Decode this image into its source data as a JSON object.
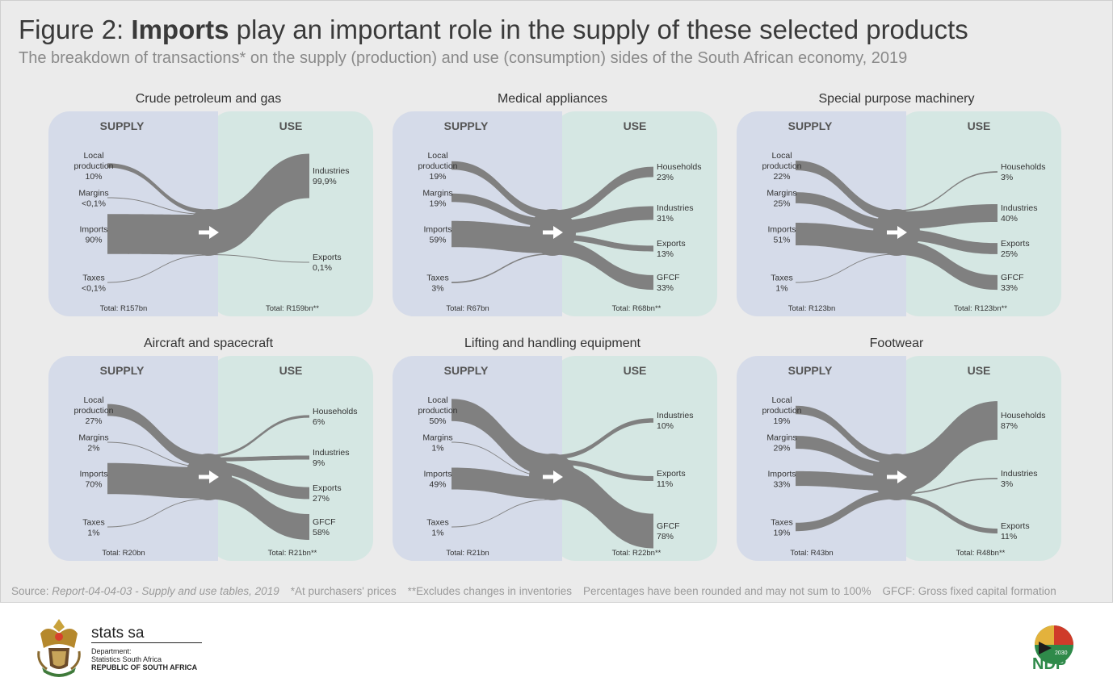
{
  "header": {
    "title_prefix": "Figure 2: ",
    "title_bold": "Imports",
    "title_rest": " play an important role in the supply of these selected products",
    "subtitle": "The breakdown of transactions* on the supply (production) and use (consumption) sides of the South African economy, 2019"
  },
  "colors": {
    "supply_bg": "#d5dbe9",
    "use_bg": "#d5e7e3",
    "flow": "#808080",
    "hub_arrow": "#ffffff"
  },
  "labels": {
    "supply": "SUPPLY",
    "use": "USE"
  },
  "chart_data": {
    "type": "sankey",
    "charts": [
      {
        "title": "Crude petroleum and gas",
        "supply": [
          {
            "label": "Local production",
            "pct": "10%",
            "value": 10
          },
          {
            "label": "Margins",
            "pct": "<0,1%",
            "value": 0.1
          },
          {
            "label": "Imports",
            "pct": "90%",
            "value": 90
          },
          {
            "label": "Taxes",
            "pct": "<0,1%",
            "value": 0.1
          }
        ],
        "use": [
          {
            "label": "Industries",
            "pct": "99,9%",
            "value": 99.9
          },
          {
            "label": "Exports",
            "pct": "0,1%",
            "value": 0.1
          }
        ],
        "supply_total": "Total: R157bn",
        "use_total": "Total: R159bn**"
      },
      {
        "title": "Medical appliances",
        "supply": [
          {
            "label": "Local production",
            "pct": "19%",
            "value": 19
          },
          {
            "label": "Margins",
            "pct": "19%",
            "value": 19
          },
          {
            "label": "Imports",
            "pct": "59%",
            "value": 59
          },
          {
            "label": "Taxes",
            "pct": "3%",
            "value": 3
          }
        ],
        "use": [
          {
            "label": "Households",
            "pct": "23%",
            "value": 23
          },
          {
            "label": "Industries",
            "pct": "31%",
            "value": 31
          },
          {
            "label": "Exports",
            "pct": "13%",
            "value": 13
          },
          {
            "label": "GFCF",
            "pct": "33%",
            "value": 33
          }
        ],
        "supply_total": "Total: R67bn",
        "use_total": "Total: R68bn**"
      },
      {
        "title": "Special purpose machinery",
        "supply": [
          {
            "label": "Local production",
            "pct": "22%",
            "value": 22
          },
          {
            "label": "Margins",
            "pct": "25%",
            "value": 25
          },
          {
            "label": "Imports",
            "pct": "51%",
            "value": 51
          },
          {
            "label": "Taxes",
            "pct": "1%",
            "value": 1
          }
        ],
        "use": [
          {
            "label": "Households",
            "pct": "3%",
            "value": 3
          },
          {
            "label": "Industries",
            "pct": "40%",
            "value": 40
          },
          {
            "label": "Exports",
            "pct": "25%",
            "value": 25
          },
          {
            "label": "GFCF",
            "pct": "33%",
            "value": 33
          }
        ],
        "supply_total": "Total: R123bn",
        "use_total": "Total: R123bn**"
      },
      {
        "title": "Aircraft and spacecraft",
        "supply": [
          {
            "label": "Local production",
            "pct": "27%",
            "value": 27
          },
          {
            "label": "Margins",
            "pct": "2%",
            "value": 2
          },
          {
            "label": "Imports",
            "pct": "70%",
            "value": 70
          },
          {
            "label": "Taxes",
            "pct": "1%",
            "value": 1
          }
        ],
        "use": [
          {
            "label": "Households",
            "pct": "6%",
            "value": 6
          },
          {
            "label": "Industries",
            "pct": "9%",
            "value": 9
          },
          {
            "label": "Exports",
            "pct": "27%",
            "value": 27
          },
          {
            "label": "GFCF",
            "pct": "58%",
            "value": 58
          }
        ],
        "supply_total": "Total: R20bn",
        "use_total": "Total: R21bn**"
      },
      {
        "title": "Lifting and handling equipment",
        "supply": [
          {
            "label": "Local production",
            "pct": "50%",
            "value": 50
          },
          {
            "label": "Margins",
            "pct": "1%",
            "value": 1
          },
          {
            "label": "Imports",
            "pct": "49%",
            "value": 49
          },
          {
            "label": "Taxes",
            "pct": "1%",
            "value": 1
          }
        ],
        "use": [
          {
            "label": "Industries",
            "pct": "10%",
            "value": 10
          },
          {
            "label": "Exports",
            "pct": "11%",
            "value": 11
          },
          {
            "label": "GFCF",
            "pct": "78%",
            "value": 78
          }
        ],
        "supply_total": "Total: R21bn",
        "use_total": "Total: R22bn**"
      },
      {
        "title": "Footwear",
        "supply": [
          {
            "label": "Local production",
            "pct": "19%",
            "value": 19
          },
          {
            "label": "Margins",
            "pct": "29%",
            "value": 29
          },
          {
            "label": "Imports",
            "pct": "33%",
            "value": 33
          },
          {
            "label": "Taxes",
            "pct": "19%",
            "value": 19
          }
        ],
        "use": [
          {
            "label": "Households",
            "pct": "87%",
            "value": 87
          },
          {
            "label": "Industries",
            "pct": "3%",
            "value": 3
          },
          {
            "label": "Exports",
            "pct": "11%",
            "value": 11
          }
        ],
        "supply_total": "Total: R43bn",
        "use_total": "Total: R48bn**"
      }
    ]
  },
  "footnote": {
    "source_prefix": "Source: ",
    "source_italic": "Report-04-04-03 - Supply and use tables, 2019",
    "note1": "*At purchasers' prices",
    "note2": "**Excludes changes in inventories",
    "note3": "Percentages have been rounded and may not sum to 100%",
    "note4": "GFCF: Gross fixed capital formation"
  },
  "footer": {
    "brand": "stats sa",
    "dept_line1": "Department:",
    "dept_line2": "Statistics South Africa",
    "dept_line3": "REPUBLIC OF SOUTH AFRICA",
    "ndp_year": "2030",
    "ndp_text": "NDP"
  }
}
